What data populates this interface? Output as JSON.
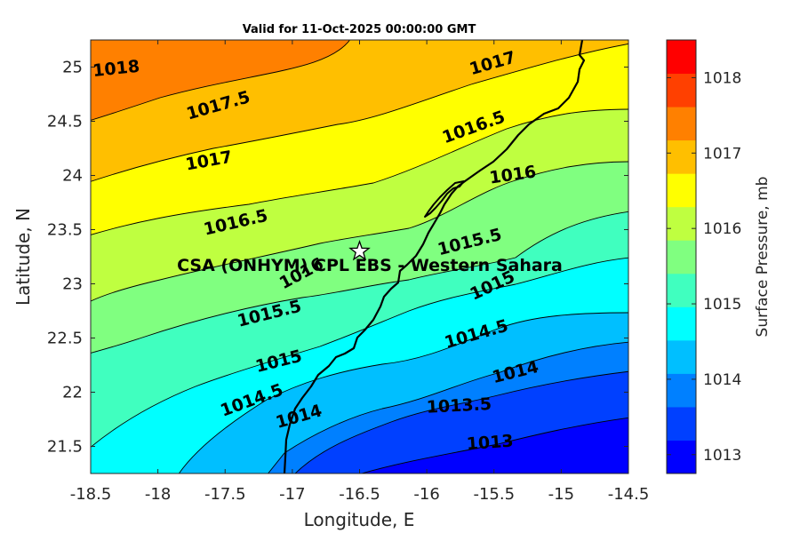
{
  "title": "Valid for 11-Oct-2025 00:00:00 GMT",
  "site_label": "CSA (ONHYM) CPL EBS   - Western Sahara",
  "colorbar": {
    "label": "Surface Pressure, mb",
    "ticks": [
      "1013",
      "1014",
      "1015",
      "1016",
      "1017",
      "1018"
    ],
    "colors": [
      "#0000ff",
      "#0040ff",
      "#0080ff",
      "#00bfff",
      "#00ffff",
      "#40ffbf",
      "#80ff80",
      "#bfff40",
      "#ffff00",
      "#ffbf00",
      "#ff8000",
      "#ff4000",
      "#ff0000"
    ]
  },
  "chart_data": {
    "type": "contour-map",
    "xlabel": "Longitude, E",
    "ylabel": "Latitude, N",
    "xlim": [
      -18.5,
      -14.5
    ],
    "ylim": [
      21.25,
      25.25
    ],
    "x_ticks": [
      "-18.5",
      "-18",
      "-17.5",
      "-17",
      "-16.5",
      "-16",
      "-15.5",
      "-15",
      "-14.5"
    ],
    "y_ticks": [
      "21.5",
      "22",
      "22.5",
      "23",
      "23.5",
      "24",
      "24.5",
      "25"
    ],
    "site": {
      "lon": -16.5,
      "lat": 23.3
    },
    "contour_labels": [
      {
        "text": "1018",
        "lon": -18.31,
        "lat": 24.98
      },
      {
        "text": "1017.5",
        "lon": -17.55,
        "lat": 24.64
      },
      {
        "text": "1017",
        "lon": -17.62,
        "lat": 24.13
      },
      {
        "text": "1016.5",
        "lon": -17.42,
        "lat": 23.56
      },
      {
        "text": "1016",
        "lon": -16.93,
        "lat": 23.09
      },
      {
        "text": "1015.5",
        "lon": -17.17,
        "lat": 22.72
      },
      {
        "text": "1015",
        "lon": -17.1,
        "lat": 22.28
      },
      {
        "text": "1014.5",
        "lon": -17.3,
        "lat": 21.92
      },
      {
        "text": "1014",
        "lon": -16.95,
        "lat": 21.77
      },
      {
        "text": "1017",
        "lon": -15.51,
        "lat": 25.03
      },
      {
        "text": "1016.5",
        "lon": -15.65,
        "lat": 24.44
      },
      {
        "text": "1016",
        "lon": -15.36,
        "lat": 24.0
      },
      {
        "text": "1015.5",
        "lon": -15.68,
        "lat": 23.38
      },
      {
        "text": "1015",
        "lon": -15.51,
        "lat": 22.98
      },
      {
        "text": "1014.5",
        "lon": -15.63,
        "lat": 22.53
      },
      {
        "text": "1014",
        "lon": -15.34,
        "lat": 22.18
      },
      {
        "text": "1013.5",
        "lon": -15.76,
        "lat": 21.87
      },
      {
        "text": "1013",
        "lon": -15.53,
        "lat": 21.53
      }
    ]
  }
}
